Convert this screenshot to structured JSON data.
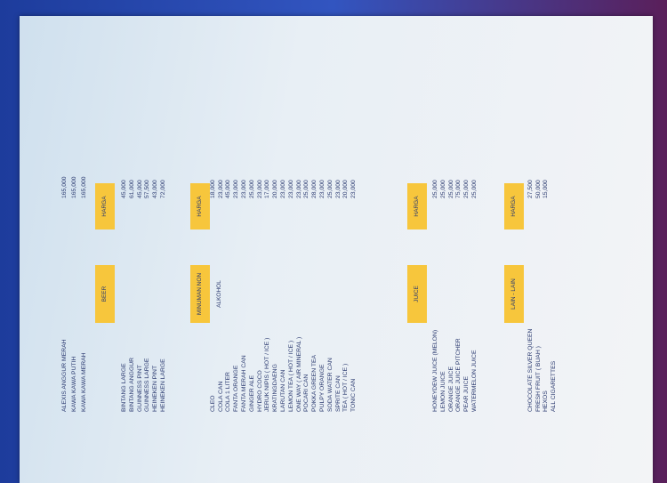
{
  "top_items": [
    {
      "name": "ALEXIS ANGGUR MERAH",
      "price": "165,000"
    },
    {
      "name": "KAWA KAWA PUTIH",
      "price": "165,000"
    },
    {
      "name": "KAWA KAWA MERAH",
      "price": "165,000"
    }
  ],
  "sections": [
    {
      "title": "BEER",
      "price_header": "HARGA",
      "items": [
        {
          "name": "BINTANG LARGE",
          "price": "45,000"
        },
        {
          "name": "BINTANG ANGGUR",
          "price": "61,000"
        },
        {
          "name": "GUINNESS PINT",
          "price": "45,000"
        },
        {
          "name": "GUINNESS LARGE",
          "price": "57,500"
        },
        {
          "name": "HEINEKEN PINT",
          "price": "43,000"
        },
        {
          "name": "HEINEKEN LARGE",
          "price": "72,000"
        }
      ]
    },
    {
      "title": "MINUMAN NON ALKOHOL",
      "price_header": "HARGA",
      "items": [
        {
          "name": "CLEO",
          "price": "18,000"
        },
        {
          "name": "COLA CAN",
          "price": "23,000"
        },
        {
          "name": "COLA 1 LITER",
          "price": "45,000"
        },
        {
          "name": "FANTA ORANGE",
          "price": "23,000"
        },
        {
          "name": "FANTA MERAH CAN",
          "price": "23,000"
        },
        {
          "name": "GINGER ALE",
          "price": "25,000"
        },
        {
          "name": "HYDRO COCO",
          "price": "23,000"
        },
        {
          "name": "JERUK NIPIS ( HOT / ICE )",
          "price": "17,000"
        },
        {
          "name": "KRATINGDAENG",
          "price": "20,000"
        },
        {
          "name": "LARUTAN CAN",
          "price": "23,000"
        },
        {
          "name": "LEMON TEA ( HOT / ICE )",
          "price": "23,000"
        },
        {
          "name": "ONE WAY ( AIR MINERAL )",
          "price": "23,000"
        },
        {
          "name": "POCARI CAN",
          "price": "25,000"
        },
        {
          "name": "POKKA GREEN TEA",
          "price": "28,000"
        },
        {
          "name": "PULPY ORANGE",
          "price": "23,000"
        },
        {
          "name": "SODA WATER CAN",
          "price": "25,000"
        },
        {
          "name": "SPRITE CAN",
          "price": "23,000"
        },
        {
          "name": "TEA ( HOT / ICE )",
          "price": "20,000"
        },
        {
          "name": "TONIC CAN",
          "price": "23,000"
        }
      ]
    },
    {
      "title": "JUICE",
      "price_header": "HARGA",
      "items": [
        {
          "name": "HONEYDEW JUICE (MELON)",
          "price": "25,000"
        },
        {
          "name": "LEMON JUICE",
          "price": "25,000"
        },
        {
          "name": "ORANGE JUICE",
          "price": "25,000"
        },
        {
          "name": "ORANGE JUICE PITCHER",
          "price": "75,000"
        },
        {
          "name": "PEAR JUICE",
          "price": "25,000"
        },
        {
          "name": "WATERMELON JUICE",
          "price": "25,000"
        }
      ]
    },
    {
      "title": "LAIN - LAIN",
      "price_header": "HARGA",
      "items": [
        {
          "name": "CHOCOLATE SILVER QUEEN",
          "price": "27,500"
        },
        {
          "name": "FRESH FRUIT ( BUAH )",
          "price": "50,000"
        },
        {
          "name": "HEXOS",
          "price": "15,000"
        },
        {
          "name": "ALL CIGARETTES"
        }
      ]
    }
  ]
}
